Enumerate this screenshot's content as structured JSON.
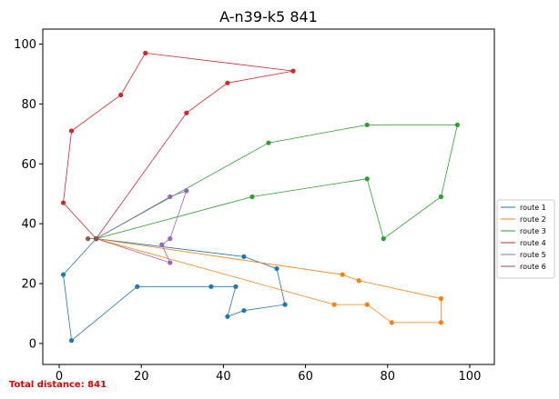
{
  "chart_data": {
    "type": "line",
    "title": "A-n39-k5 841",
    "xlabel": "",
    "ylabel": "",
    "xlim": [
      -4,
      106
    ],
    "ylim": [
      -7,
      105
    ],
    "xticks": [
      0,
      20,
      40,
      60,
      80,
      100
    ],
    "yticks": [
      0,
      20,
      40,
      60,
      80,
      100
    ],
    "grid": false,
    "legend_position": "right",
    "depot": {
      "x": 9,
      "y": 35
    },
    "series": [
      {
        "name": "route 1",
        "color": "#1f77b4",
        "points": [
          [
            9,
            35
          ],
          [
            45,
            29
          ],
          [
            53,
            25
          ],
          [
            55,
            13
          ],
          [
            45,
            11
          ],
          [
            41,
            9
          ],
          [
            43,
            19
          ],
          [
            37,
            19
          ],
          [
            19,
            19
          ],
          [
            3,
            1
          ],
          [
            1,
            23
          ],
          [
            9,
            35
          ]
        ]
      },
      {
        "name": "route 2",
        "color": "#ff7f0e",
        "points": [
          [
            9,
            35
          ],
          [
            69,
            23
          ],
          [
            73,
            21
          ],
          [
            93,
            15
          ],
          [
            93,
            7
          ],
          [
            81,
            7
          ],
          [
            75,
            13
          ],
          [
            67,
            13
          ],
          [
            9,
            35
          ]
        ]
      },
      {
        "name": "route 3",
        "color": "#2ca02c",
        "points": [
          [
            9,
            35
          ],
          [
            47,
            49
          ],
          [
            75,
            55
          ],
          [
            79,
            35
          ],
          [
            93,
            49
          ],
          [
            97,
            73
          ],
          [
            75,
            73
          ],
          [
            51,
            67
          ],
          [
            9,
            35
          ]
        ]
      },
      {
        "name": "route 4",
        "color": "#d62728",
        "points": [
          [
            9,
            35
          ],
          [
            1,
            47
          ],
          [
            3,
            71
          ],
          [
            15,
            83
          ],
          [
            21,
            97
          ],
          [
            57,
            91
          ],
          [
            41,
            87
          ],
          [
            31,
            77
          ],
          [
            9,
            35
          ]
        ]
      },
      {
        "name": "route 5",
        "color": "#9467bd",
        "points": [
          [
            9,
            35
          ],
          [
            27,
            49
          ],
          [
            31,
            51
          ],
          [
            27,
            35
          ],
          [
            25,
            33
          ],
          [
            27,
            27
          ],
          [
            9,
            35
          ]
        ]
      },
      {
        "name": "route 6",
        "color": "#8c564b",
        "points": [
          [
            9,
            35
          ],
          [
            7,
            35
          ],
          [
            9,
            35
          ]
        ]
      }
    ]
  },
  "footer_text": "Total distance: 841"
}
